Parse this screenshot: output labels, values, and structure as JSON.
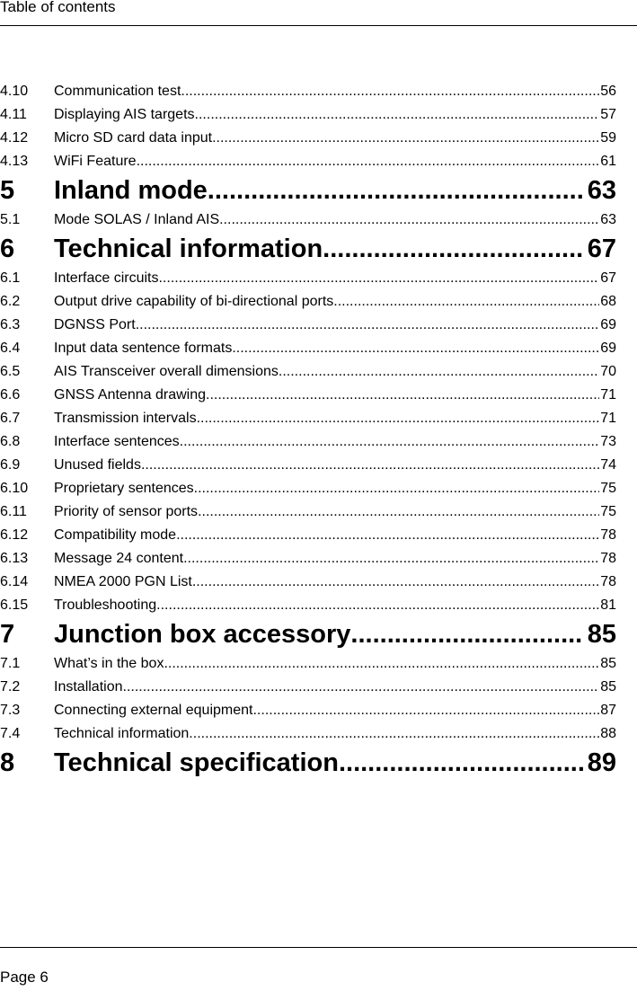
{
  "header": {
    "title": "Table of contents"
  },
  "toc": [
    {
      "num": "4.10",
      "title": "Communication test ",
      "page": "56",
      "level": "minor"
    },
    {
      "num": "4.11",
      "title": "Displaying AIS targets",
      "page": "57",
      "level": "minor"
    },
    {
      "num": "4.12",
      "title": "Micro SD card data input",
      "page": "59",
      "level": "minor"
    },
    {
      "num": "4.13",
      "title": "WiFi Feature",
      "page": "61",
      "level": "minor"
    },
    {
      "num": "5",
      "title": "Inland mode",
      "page": "63",
      "level": "major"
    },
    {
      "num": "5.1",
      "title": "Mode SOLAS / Inland AIS",
      "page": "63",
      "level": "minor"
    },
    {
      "num": "6",
      "title": "Technical information",
      "page": "67",
      "level": "major"
    },
    {
      "num": "6.1",
      "title": "Interface circuits",
      "page": "67",
      "level": "minor"
    },
    {
      "num": "6.2",
      "title": "Output drive capability of bi-directional ports ",
      "page": "68",
      "level": "minor"
    },
    {
      "num": "6.3",
      "title": "DGNSS Port",
      "page": "69",
      "level": "minor"
    },
    {
      "num": "6.4",
      "title": "Input data sentence formats",
      "page": "69",
      "level": "minor"
    },
    {
      "num": "6.5",
      "title": "AIS Transceiver overall dimensions",
      "page": "70",
      "level": "minor"
    },
    {
      "num": "6.6",
      "title": "GNSS Antenna drawing",
      "page": "71",
      "level": "minor"
    },
    {
      "num": "6.7",
      "title": "Transmission intervals ",
      "page": "71",
      "level": "minor"
    },
    {
      "num": "6.8",
      "title": "Interface sentences",
      "page": "73",
      "level": "minor"
    },
    {
      "num": "6.9",
      "title": "Unused fields ",
      "page": "74",
      "level": "minor"
    },
    {
      "num": "6.10",
      "title": "Proprietary sentences ",
      "page": "75",
      "level": "minor"
    },
    {
      "num": "6.11",
      "title": "Priority of sensor ports ",
      "page": "75",
      "level": "minor"
    },
    {
      "num": "6.12",
      "title": "Compatibility mode",
      "page": "78",
      "level": "minor"
    },
    {
      "num": "6.13",
      "title": "Message 24 content",
      "page": "78",
      "level": "minor"
    },
    {
      "num": "6.14",
      "title": "NMEA 2000 PGN List ",
      "page": "78",
      "level": "minor"
    },
    {
      "num": "6.15",
      "title": "Troubleshooting ",
      "page": "81",
      "level": "minor"
    },
    {
      "num": "7",
      "title": "Junction box accessory ",
      "page": "85",
      "level": "major"
    },
    {
      "num": "7.1",
      "title": "What’s in the box",
      "page": "85",
      "level": "minor"
    },
    {
      "num": "7.2",
      "title": "Installation",
      "page": "85",
      "level": "minor"
    },
    {
      "num": "7.3",
      "title": "Connecting external equipment ",
      "page": "87",
      "level": "minor"
    },
    {
      "num": "7.4",
      "title": "Technical information",
      "page": "88",
      "level": "minor"
    },
    {
      "num": "8",
      "title": "Technical specification ",
      "page": "89",
      "level": "major"
    }
  ],
  "footer": {
    "page_label": "Page 6"
  }
}
